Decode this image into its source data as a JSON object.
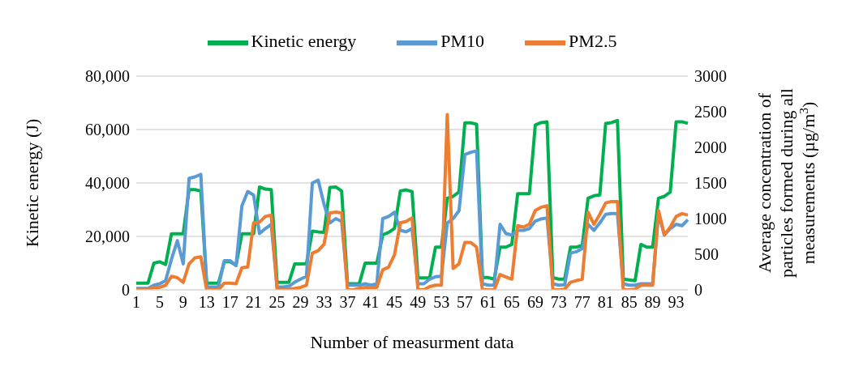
{
  "chart_data": {
    "type": "line",
    "xlabel": "Number of measurment data",
    "ylabel": "Kinetic energy (J)",
    "y2label": "Average concentration of particles formed during all measurements (µg/m$^{3}$)",
    "categories": [
      "1",
      null,
      null,
      null,
      "5",
      null,
      null,
      null,
      "9",
      null,
      null,
      null,
      "13",
      null,
      null,
      null,
      "17",
      null,
      null,
      null,
      "21",
      null,
      null,
      null,
      "25",
      null,
      null,
      null,
      "29",
      null,
      null,
      null,
      "33",
      null,
      null,
      null,
      "37",
      null,
      null,
      null,
      "41",
      null,
      null,
      null,
      "45",
      null,
      null,
      null,
      "49",
      null,
      null,
      null,
      "53",
      null,
      null,
      null,
      "57",
      null,
      null,
      null,
      "61",
      null,
      null,
      null,
      "65",
      null,
      null,
      null,
      "69",
      null,
      null,
      null,
      "73",
      null,
      null,
      null,
      "77",
      null,
      null,
      null,
      "81",
      null,
      null,
      null,
      "85",
      null,
      null,
      null,
      "89",
      null,
      null,
      null,
      "93",
      null,
      null
    ],
    "series": [
      {
        "name": "Kinetic energy",
        "color": "#00b050",
        "values": [
          2500,
          2500,
          2500,
          10000,
          10500,
          9500,
          21000,
          21000,
          21000,
          37500,
          37500,
          37000,
          2500,
          2500,
          2500,
          10500,
          10500,
          9200,
          21000,
          21000,
          21000,
          38500,
          37700,
          37500,
          2800,
          2800,
          2800,
          9700,
          9700,
          9800,
          22000,
          21700,
          21500,
          38300,
          38500,
          37000,
          2300,
          2300,
          2300,
          10000,
          10000,
          10000,
          20600,
          21500,
          23000,
          37000,
          37400,
          36800,
          4500,
          4500,
          4500,
          16000,
          16000,
          34300,
          35000,
          36600,
          62500,
          62500,
          62000,
          4600,
          4600,
          4000,
          16000,
          16000,
          17000,
          36000,
          36000,
          36000,
          61700,
          62600,
          62900,
          4600,
          4000,
          4000,
          16000,
          16000,
          16600,
          34300,
          35200,
          35500,
          62300,
          62600,
          63400,
          4000,
          3700,
          3400,
          17000,
          16000,
          16000,
          34300,
          35000,
          36600,
          62900,
          62900,
          62300
        ]
      },
      {
        "name": "PM10",
        "color": "#5b9bd5",
        "axis": "y2",
        "values": [
          20,
          20,
          20,
          65,
          85,
          130,
          430,
          690,
          365,
          1565,
          1585,
          1620,
          40,
          40,
          40,
          410,
          410,
          340,
          1180,
          1380,
          1330,
          790,
          860,
          920,
          40,
          40,
          50,
          107,
          150,
          190,
          1500,
          1540,
          1200,
          940,
          1000,
          960,
          65,
          65,
          65,
          85,
          65,
          85,
          1000,
          1030,
          1090,
          835,
          815,
          860,
          85,
          85,
          150,
          185,
          190,
          940,
          1000,
          1110,
          1900,
          1930,
          1950,
          85,
          65,
          65,
          920,
          790,
          770,
          835,
          835,
          860,
          965,
          995,
          1010,
          85,
          65,
          70,
          515,
          535,
          580,
          920,
          835,
          940,
          1060,
          1070,
          1070,
          85,
          65,
          65,
          85,
          85,
          85,
          1070,
          770,
          860,
          920,
          900,
          985
        ]
      },
      {
        "name": "PM2.5",
        "color": "#ed7d31",
        "axis": "y2",
        "values": [
          5,
          5,
          5,
          35,
          35,
          65,
          190,
          170,
          105,
          365,
          450,
          463,
          0,
          0,
          0,
          95,
          95,
          85,
          310,
          320,
          940,
          950,
          1030,
          1050,
          0,
          0,
          10,
          20,
          35,
          65,
          515,
          550,
          640,
          1080,
          1090,
          1080,
          0,
          0,
          20,
          35,
          35,
          35,
          280,
          320,
          490,
          940,
          960,
          1010,
          0,
          0,
          45,
          65,
          65,
          2460,
          300,
          365,
          665,
          665,
          600,
          0,
          0,
          0,
          215,
          180,
          150,
          900,
          880,
          920,
          1115,
          1160,
          1180,
          0,
          0,
          10,
          107,
          130,
          150,
          1090,
          920,
          1060,
          1220,
          1240,
          1240,
          0,
          0,
          10,
          65,
          65,
          65,
          1115,
          770,
          880,
          1030,
          1070,
          1050
        ]
      }
    ],
    "ylim": [
      0,
      80000
    ],
    "yticks": [
      {
        "value": 0,
        "label": "0"
      },
      {
        "value": 20000,
        "label": "20,000"
      },
      {
        "value": 40000,
        "label": "40,000"
      },
      {
        "value": 60000,
        "label": "60,000"
      },
      {
        "value": 80000,
        "label": "80,000"
      }
    ],
    "y2lim": [
      0,
      3000
    ],
    "y2ticks": [
      0,
      500,
      1000,
      1500,
      2000,
      2500,
      3000
    ],
    "grid": "y",
    "legend": "top",
    "marker": "none",
    "line_style": "solid"
  }
}
